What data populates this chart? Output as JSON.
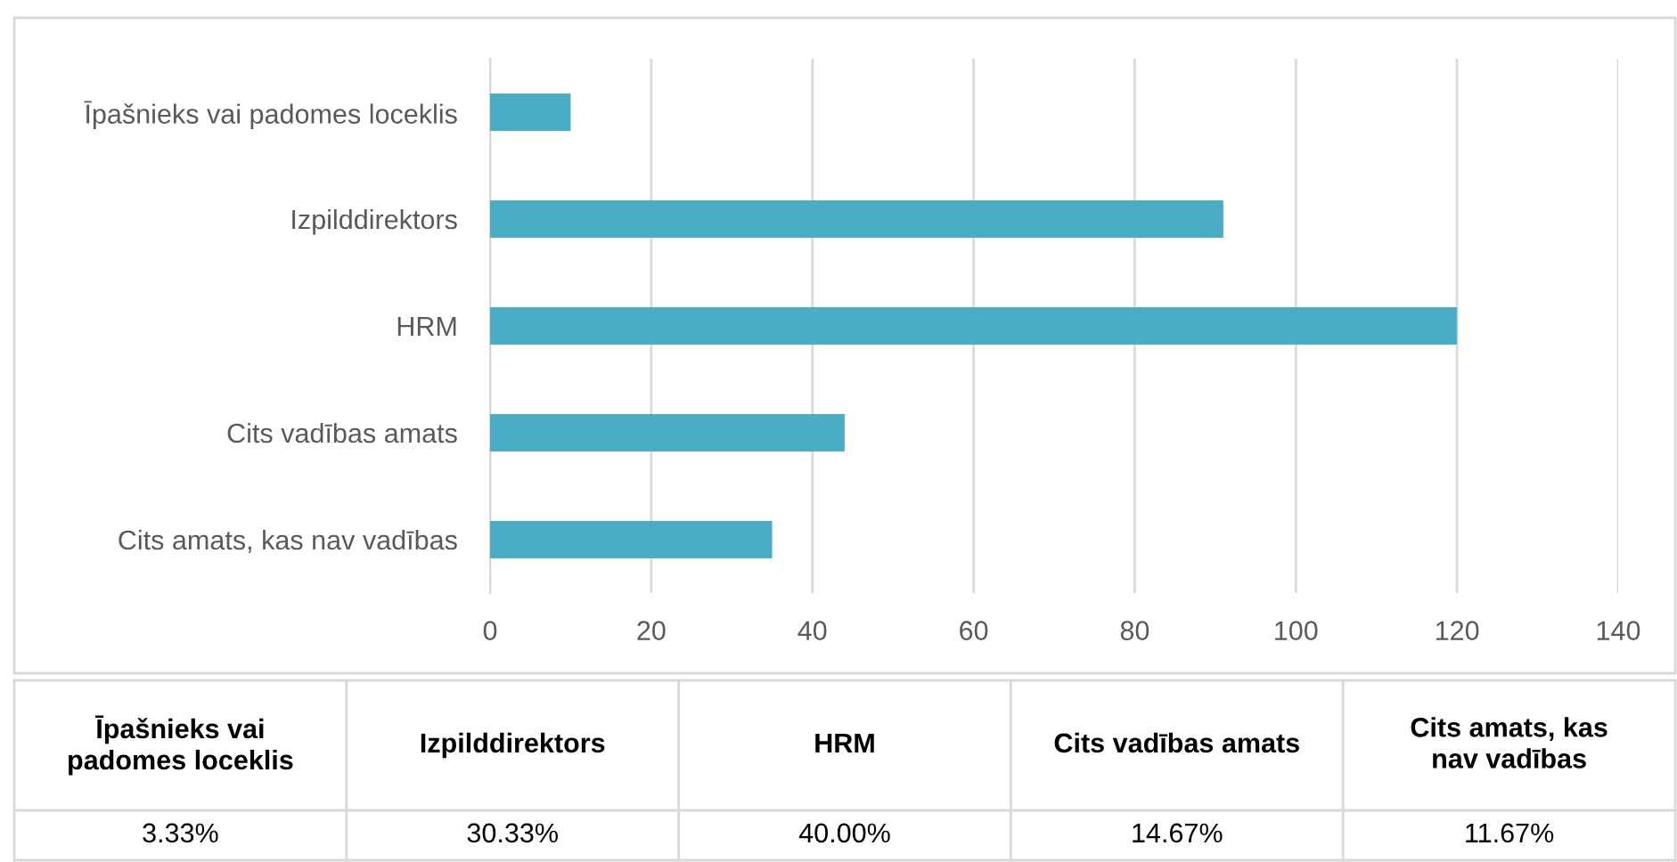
{
  "chart_data": {
    "type": "bar",
    "orientation": "horizontal",
    "categories": [
      "Īpašnieks vai padomes loceklis",
      "Izpilddirektors",
      "HRM",
      "Cits vadības amats",
      "Cits amats, kas nav vadības"
    ],
    "values": [
      10,
      91,
      120,
      44,
      35
    ],
    "color": "#4bacc6",
    "annotations": [
      "3.33%",
      "30.33%",
      "40.00%",
      "14.67%",
      "11.67%"
    ],
    "xlim": [
      0,
      140
    ],
    "xticks": [
      0,
      20,
      40,
      60,
      80,
      100,
      120,
      140
    ],
    "grid": "x"
  }
}
